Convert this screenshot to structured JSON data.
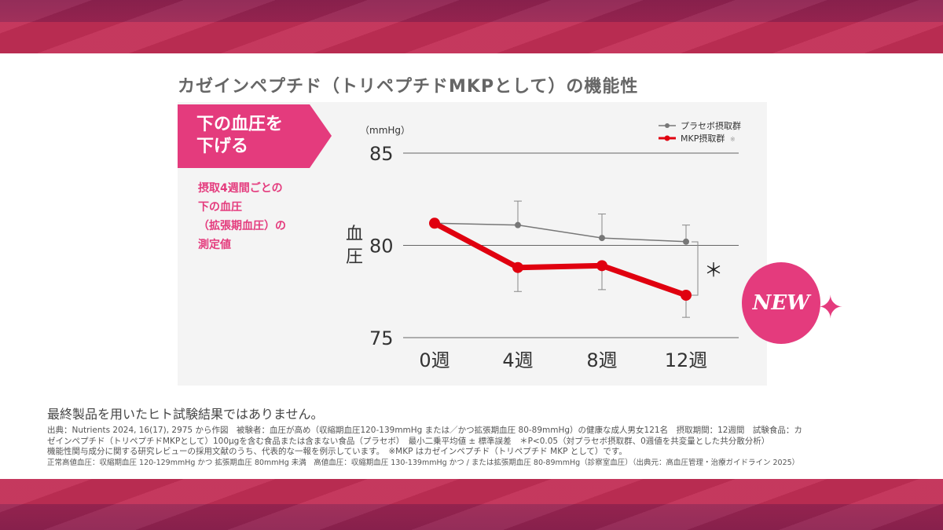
{
  "title": "カゼインペプチド（トリペプチドMKPとして）の機能性",
  "tag": {
    "line1": "下の血圧を",
    "line2": "下げる"
  },
  "description": [
    "摂取4週間ごとの",
    "下の血圧",
    "（拡張期血圧）の",
    "測定値"
  ],
  "badge": "NEW",
  "colors": {
    "accent": "#e43b7d",
    "mkp": "#e0000f",
    "placebo": "#777777",
    "band": "#c22e55"
  },
  "chart_data": {
    "type": "line",
    "unit_label": "（mmHg）",
    "ylabel": "血圧",
    "ylim": [
      75,
      85
    ],
    "yticks": [
      "75",
      "80",
      "85"
    ],
    "categories": [
      "0週",
      "4週",
      "8週",
      "12週"
    ],
    "grid": true,
    "legend_position": "top-right",
    "series": [
      {
        "name": "プラセボ摂取群",
        "values": [
          81.2,
          81.1,
          80.4,
          80.2
        ],
        "error": [
          0,
          1.3,
          1.3,
          0.9
        ],
        "error_dir": "up"
      },
      {
        "name": "MKP摂取群",
        "legend_mark": "※",
        "values": [
          81.2,
          78.8,
          78.9,
          77.3
        ],
        "error": [
          0,
          1.3,
          1.3,
          1.2
        ],
        "error_dir": "down"
      }
    ],
    "annotation": "＊"
  },
  "footer": {
    "note": "最終製品を用いたヒト試験結果ではありません。",
    "lines": [
      "出典：Nutrients 2024, 16(17), 2975 から作図　被験者：血圧が高め（収縮期血圧120-139mmHg または／かつ拡張期血圧 80-89mmHg）の健康な成人男女121名　摂取期間：12週間　試験食品：カ",
      "ゼインペプチド（トリペプチドMKPとして）100μgを含む食品または含まない食品（プラセボ）　最小二乗平均値 ± 標準誤差　＊P<0.05（対プラセボ摂取群、0週値を共変量とした共分散分析）",
      "機能性関与成分に関する研究レビューの採用文献のうち、代表的な一報を例示しています。　※MKP はカゼインペプチド（トリペプチド MKP として）です。",
      "正常高値血圧：収縮期血圧 120-129mmHg かつ 拡張期血圧 80mmHg 未満　高値血圧：収縮期血圧 130-139mmHg かつ / または拡張期血圧 80-89mmHg（診察室血圧）（出典元：高血圧管理・治療ガイドライン 2025）"
    ]
  }
}
